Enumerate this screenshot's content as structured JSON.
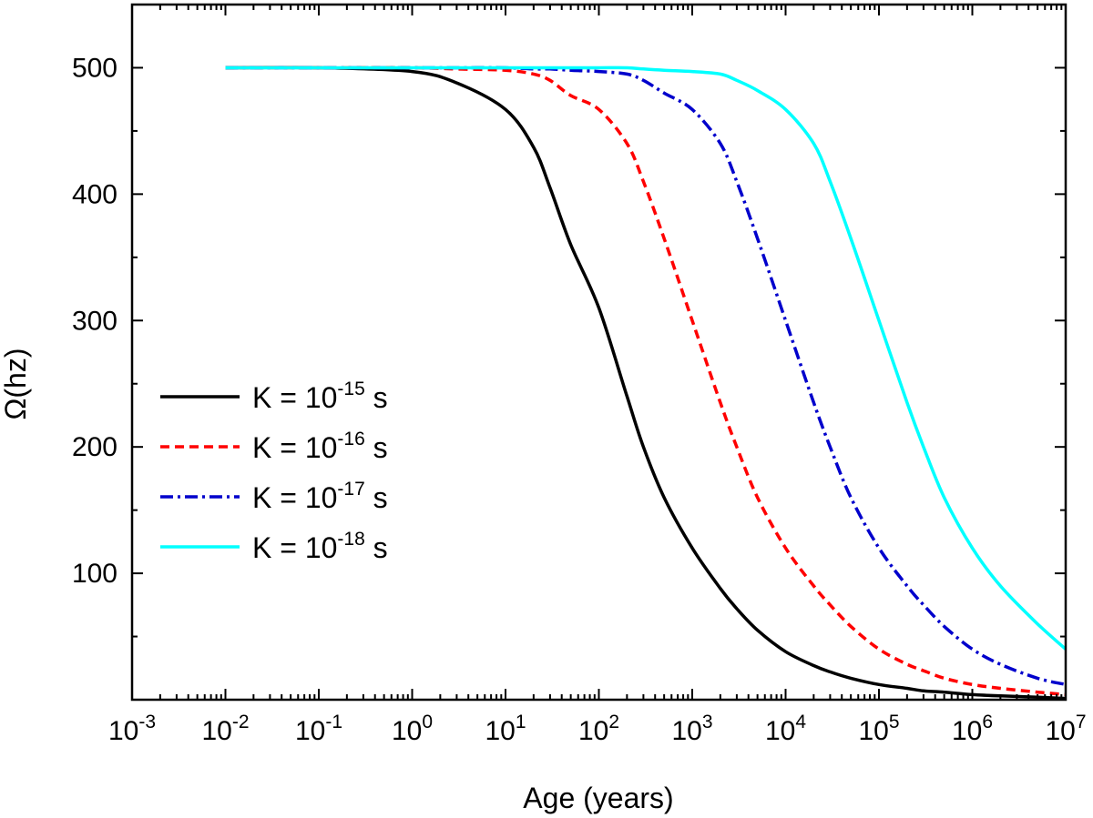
{
  "chart_data": {
    "type": "line",
    "xlabel": "Age (years)",
    "ylabel": "Ω(hz)",
    "xscale": "log",
    "xlim": [
      0.001,
      10000000
    ],
    "ylim": [
      0,
      550
    ],
    "x_ticks": [
      {
        "base": "10",
        "exp": "-3"
      },
      {
        "base": "10",
        "exp": "-2"
      },
      {
        "base": "10",
        "exp": "-1"
      },
      {
        "base": "10",
        "exp": "0"
      },
      {
        "base": "10",
        "exp": "1"
      },
      {
        "base": "10",
        "exp": "2"
      },
      {
        "base": "10",
        "exp": "3"
      },
      {
        "base": "10",
        "exp": "4"
      },
      {
        "base": "10",
        "exp": "5"
      },
      {
        "base": "10",
        "exp": "6"
      },
      {
        "base": "10",
        "exp": "7"
      }
    ],
    "y_ticks": [
      "100",
      "200",
      "300",
      "400",
      "500"
    ],
    "legend_position": "center-left",
    "grid": false,
    "x": [
      0.01,
      0.1,
      1,
      3,
      10,
      20,
      30,
      50,
      100,
      200,
      300,
      500,
      1000,
      2000,
      3000,
      5000,
      10000,
      20000,
      30000,
      50000,
      100000,
      200000,
      300000,
      500000,
      1000000,
      2000000,
      5000000,
      10000000
    ],
    "series": [
      {
        "legend": {
          "prefix": "K = 10",
          "exp": "-15",
          "suffix": " s"
        },
        "color": "#000000",
        "dash": "solid",
        "values": [
          500,
          500,
          497,
          488,
          467,
          437,
          405,
          360,
          310,
          240,
          200,
          160,
          120,
          88,
          72,
          55,
          38,
          27,
          22,
          17,
          12,
          9,
          7,
          6,
          4,
          3,
          2,
          1
        ]
      },
      {
        "legend": {
          "prefix": "K = 10",
          "exp": "-16",
          "suffix": " s"
        },
        "color": "#ff0000",
        "dash": "dashed",
        "values": [
          500,
          500,
          500,
          499,
          498,
          495,
          490,
          478,
          467,
          440,
          410,
          365,
          300,
          235,
          200,
          160,
          120,
          90,
          75,
          58,
          40,
          28,
          23,
          17,
          12,
          9,
          6,
          4
        ]
      },
      {
        "legend": {
          "prefix": "K = 10",
          "exp": "-17",
          "suffix": " s"
        },
        "color": "#0000cc",
        "dash": "dashdot",
        "values": [
          500,
          500,
          500,
          500,
          500,
          499,
          499,
          498,
          497,
          495,
          490,
          480,
          467,
          440,
          410,
          365,
          300,
          235,
          200,
          160,
          120,
          90,
          75,
          58,
          40,
          28,
          17,
          12
        ]
      },
      {
        "legend": {
          "prefix": "K = 10",
          "exp": "-18",
          "suffix": " s"
        },
        "color": "#00ffff",
        "dash": "solid",
        "values": [
          500,
          500,
          500,
          500,
          500,
          500,
          500,
          500,
          500,
          500,
          499,
          498,
          497,
          495,
          490,
          482,
          467,
          440,
          410,
          365,
          300,
          235,
          200,
          160,
          120,
          90,
          60,
          40
        ]
      }
    ]
  }
}
